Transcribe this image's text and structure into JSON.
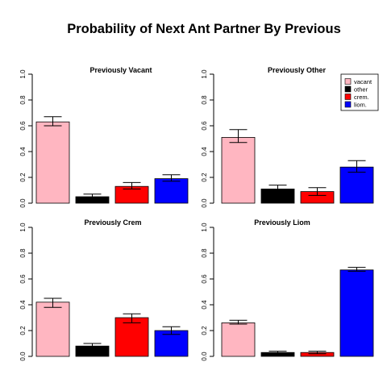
{
  "title": "Probability of Next Ant Partner By Previous",
  "colors": {
    "vacant": "#ffb6c1",
    "other": "#000000",
    "crem": "#ff0000",
    "liom": "#0000ff"
  },
  "chart_data": [
    {
      "type": "bar",
      "title": "Previously Vacant",
      "categories": [
        "vacant",
        "other",
        "crem.",
        "liom."
      ],
      "values": [
        0.63,
        0.05,
        0.13,
        0.19
      ],
      "error_low": [
        0.6,
        0.04,
        0.11,
        0.17
      ],
      "error_high": [
        0.67,
        0.07,
        0.16,
        0.22
      ],
      "ylim": [
        0,
        1
      ],
      "yticks": [
        "0.0",
        "0.2",
        "0.4",
        "0.6",
        "0.8",
        "1.0"
      ],
      "legend": null
    },
    {
      "type": "bar",
      "title": "Previously Other",
      "categories": [
        "vacant",
        "other",
        "crem.",
        "liom."
      ],
      "values": [
        0.51,
        0.11,
        0.09,
        0.28
      ],
      "error_low": [
        0.47,
        0.08,
        0.06,
        0.24
      ],
      "error_high": [
        0.57,
        0.14,
        0.12,
        0.33
      ],
      "ylim": [
        0,
        1
      ],
      "yticks": [
        "0.0",
        "0.2",
        "0.4",
        "0.6",
        "0.8",
        "1.0"
      ],
      "legend": {
        "position": "top-right",
        "entries": [
          "vacant",
          "other",
          "crem.",
          "liom."
        ]
      }
    },
    {
      "type": "bar",
      "title": "Previously Crem",
      "categories": [
        "vacant",
        "other",
        "crem.",
        "liom."
      ],
      "values": [
        0.42,
        0.08,
        0.3,
        0.2
      ],
      "error_low": [
        0.38,
        0.06,
        0.26,
        0.17
      ],
      "error_high": [
        0.45,
        0.1,
        0.33,
        0.23
      ],
      "ylim": [
        0,
        1
      ],
      "yticks": [
        "0.0",
        "0.2",
        "0.4",
        "0.6",
        "0.8",
        "1.0"
      ],
      "legend": null
    },
    {
      "type": "bar",
      "title": "Previously Liom",
      "categories": [
        "vacant",
        "other",
        "crem.",
        "liom."
      ],
      "values": [
        0.26,
        0.03,
        0.03,
        0.67
      ],
      "error_low": [
        0.25,
        0.02,
        0.02,
        0.66
      ],
      "error_high": [
        0.28,
        0.04,
        0.04,
        0.69
      ],
      "ylim": [
        0,
        1
      ],
      "yticks": [
        "0.0",
        "0.2",
        "0.4",
        "0.6",
        "0.8",
        "1.0"
      ],
      "legend": null
    }
  ]
}
